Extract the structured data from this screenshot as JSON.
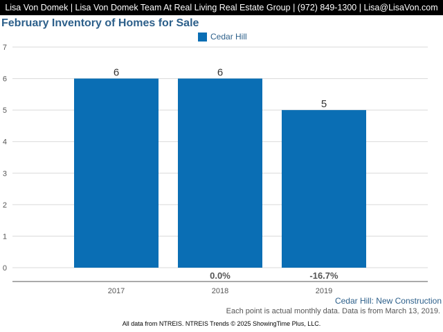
{
  "header": {
    "text": "Lisa Von Domek | Lisa Von Domek Team At Real Living Real Estate Group | (972) 849-1300 | Lisa@LisaVon.com"
  },
  "chart_data": {
    "type": "bar",
    "title": "February Inventory of Homes for Sale",
    "xlabel": "",
    "ylabel": "",
    "categories": [
      "2017",
      "2018",
      "2019"
    ],
    "series": [
      {
        "name": "Cedar Hill",
        "values": [
          6,
          6,
          5
        ]
      }
    ],
    "change_labels": [
      "",
      "0.0%",
      "-16.7%"
    ],
    "yticks": [
      0,
      1,
      2,
      3,
      4,
      5,
      6,
      7
    ],
    "ylim": [
      0,
      7
    ],
    "grid": true,
    "legend": "top-center",
    "bar_color": "#0a6eb4"
  },
  "footer": {
    "subcaption": "Cedar Hill: New Construction",
    "note": "Each point is actual monthly data. Data is from March 13, 2019.",
    "source": "All data from NTREIS. NTREIS Trends © 2025 ShowingTime Plus, LLC."
  }
}
